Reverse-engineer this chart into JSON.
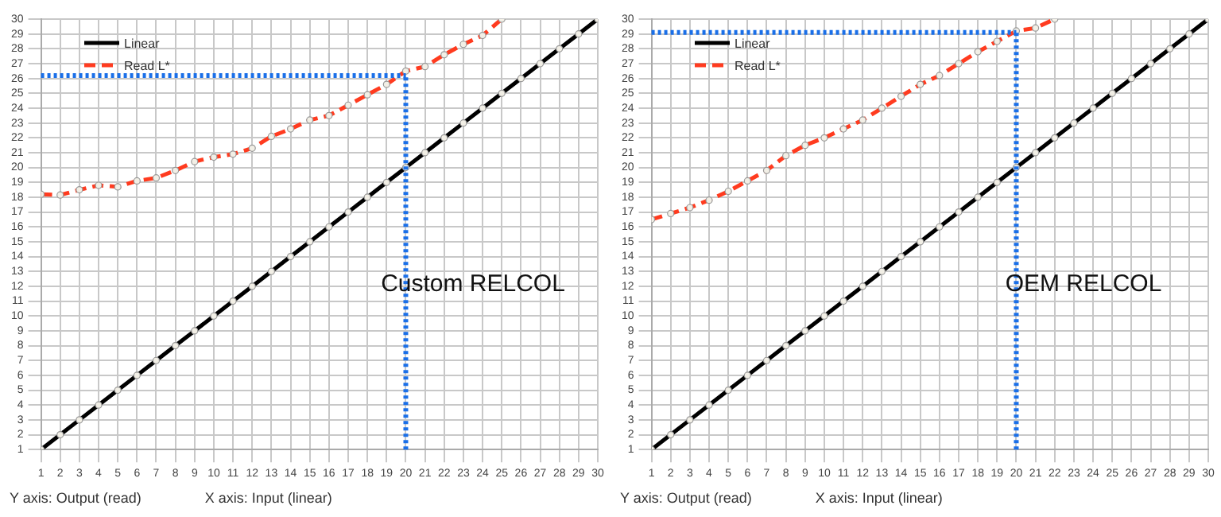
{
  "chart_data": [
    {
      "type": "line",
      "x": [
        1,
        2,
        3,
        4,
        5,
        6,
        7,
        8,
        9,
        10,
        11,
        12,
        13,
        14,
        15,
        16,
        17,
        18,
        19,
        20,
        21,
        22,
        23,
        24,
        25,
        26,
        27,
        28,
        29,
        30
      ],
      "series": [
        {
          "name": "Linear",
          "color": "#000000",
          "line_style": "solid",
          "values": [
            1,
            2,
            3,
            4,
            5,
            6,
            7,
            8,
            9,
            10,
            11,
            12,
            13,
            14,
            15,
            16,
            17,
            18,
            19,
            20,
            21,
            22,
            23,
            24,
            25,
            26,
            27,
            28,
            29,
            30
          ]
        },
        {
          "name": "Read L*",
          "color": "#ff3b1f",
          "line_style": "dashed",
          "values": [
            18.2,
            18.15,
            18.5,
            18.8,
            18.7,
            19.1,
            19.3,
            19.8,
            20.4,
            20.7,
            20.9,
            21.3,
            22.1,
            22.6,
            23.2,
            23.5,
            24.2,
            24.9,
            25.6,
            26.5,
            26.8,
            27.6,
            28.3,
            28.9,
            30,
            null,
            null,
            null,
            null,
            null
          ]
        }
      ],
      "xlim": [
        1,
        30
      ],
      "ylim": [
        1,
        30
      ],
      "xticks": [
        1,
        2,
        3,
        4,
        5,
        6,
        7,
        8,
        9,
        10,
        11,
        12,
        13,
        14,
        15,
        16,
        17,
        18,
        19,
        20,
        21,
        22,
        23,
        24,
        25,
        26,
        27,
        28,
        29,
        30
      ],
      "yticks": [
        1,
        2,
        3,
        4,
        5,
        6,
        7,
        8,
        9,
        10,
        11,
        12,
        13,
        14,
        15,
        16,
        17,
        18,
        19,
        20,
        21,
        22,
        23,
        24,
        25,
        26,
        27,
        28,
        29,
        30
      ],
      "grid": true,
      "legend": "top left",
      "marker": "circle",
      "ref_lines": [
        {
          "axis": "x",
          "value": 20,
          "color": "#1a6fe8",
          "line_style": "dotted"
        },
        {
          "axis": "y",
          "value": 26.2,
          "color": "#1a6fe8",
          "line_style": "dotted"
        }
      ],
      "annotations": [
        "Custom RELCOL",
        "Y axis: Output (read)",
        "X axis: Input (linear)"
      ]
    },
    {
      "type": "line",
      "x": [
        1,
        2,
        3,
        4,
        5,
        6,
        7,
        8,
        9,
        10,
        11,
        12,
        13,
        14,
        15,
        16,
        17,
        18,
        19,
        20,
        21,
        22,
        23,
        24,
        25,
        26,
        27,
        28,
        29,
        30
      ],
      "series": [
        {
          "name": "Linear",
          "color": "#000000",
          "line_style": "solid",
          "values": [
            1,
            2,
            3,
            4,
            5,
            6,
            7,
            8,
            9,
            10,
            11,
            12,
            13,
            14,
            15,
            16,
            17,
            18,
            19,
            20,
            21,
            22,
            23,
            24,
            25,
            26,
            27,
            28,
            29,
            30
          ]
        },
        {
          "name": "Read L*",
          "color": "#ff3b1f",
          "line_style": "dashed",
          "values": [
            16.5,
            16.9,
            17.3,
            17.8,
            18.4,
            19.1,
            19.8,
            20.8,
            21.5,
            22.0,
            22.6,
            23.2,
            24.0,
            24.8,
            25.6,
            26.2,
            27.0,
            27.8,
            28.5,
            29.2,
            29.4,
            30,
            null,
            null,
            null,
            null,
            null,
            null,
            null,
            null
          ]
        }
      ],
      "xlim": [
        1,
        30
      ],
      "ylim": [
        1,
        30
      ],
      "xticks": [
        1,
        2,
        3,
        4,
        5,
        6,
        7,
        8,
        9,
        10,
        11,
        12,
        13,
        14,
        15,
        16,
        17,
        18,
        19,
        20,
        21,
        22,
        23,
        24,
        25,
        26,
        27,
        28,
        29,
        30
      ],
      "yticks": [
        1,
        2,
        3,
        4,
        5,
        6,
        7,
        8,
        9,
        10,
        11,
        12,
        13,
        14,
        15,
        16,
        17,
        18,
        19,
        20,
        21,
        22,
        23,
        24,
        25,
        26,
        27,
        28,
        29,
        30
      ],
      "grid": true,
      "legend": "top left",
      "marker": "circle",
      "ref_lines": [
        {
          "axis": "x",
          "value": 20,
          "color": "#1a6fe8",
          "line_style": "dotted"
        },
        {
          "axis": "y",
          "value": 29.1,
          "color": "#1a6fe8",
          "line_style": "dotted"
        }
      ],
      "annotations": [
        "OEM RELCOL",
        "Y axis: Output (read)",
        "X axis: Input (linear)"
      ]
    }
  ]
}
